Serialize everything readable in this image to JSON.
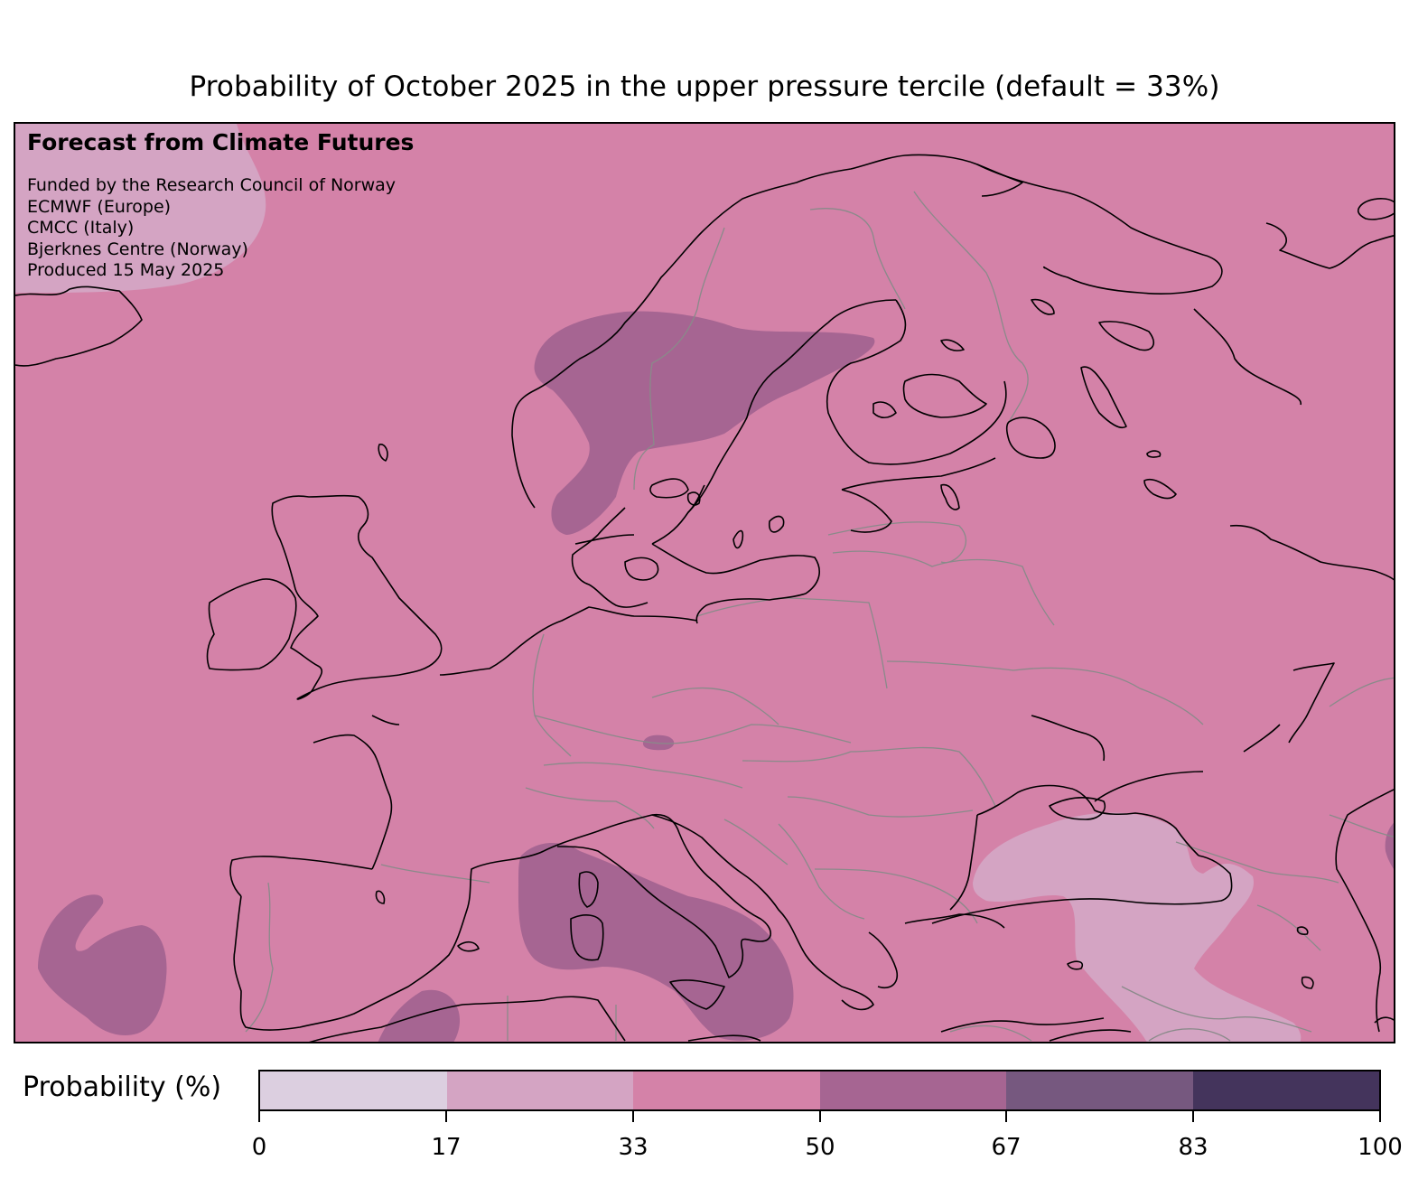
{
  "title": "Probability of October 2025 in the upper pressure tercile (default = 33%)",
  "credits": {
    "heading": "Forecast from Climate Futures",
    "lines": [
      "Funded by the Research Council of Norway",
      "ECMWF (Europe)",
      "CMCC (Italy)",
      "Bjerknes Centre (Norway)",
      "Produced 15 May 2025"
    ]
  },
  "legend": {
    "label": "Probability (%)",
    "bins": [
      {
        "from": 0,
        "to": 17,
        "color": "#dccfe0"
      },
      {
        "from": 17,
        "to": 33,
        "color": "#d4a4c3"
      },
      {
        "from": 33,
        "to": 50,
        "color": "#d482a8"
      },
      {
        "from": 50,
        "to": 67,
        "color": "#a66592"
      },
      {
        "from": 67,
        "to": 83,
        "color": "#76587f"
      },
      {
        "from": 83,
        "to": 100,
        "color": "#44345c"
      }
    ],
    "ticks": [
      "0",
      "17",
      "33",
      "50",
      "67",
      "83",
      "100"
    ]
  },
  "map": {
    "background_class": "33-50",
    "regions": [
      {
        "name": "scandinavia",
        "class": "50-67"
      },
      {
        "name": "tyrrhenian-italy",
        "class": "50-67"
      },
      {
        "name": "north-algeria",
        "class": "50-67"
      },
      {
        "name": "east-atlantic",
        "class": "50-67"
      },
      {
        "name": "alps-small",
        "class": "50-67"
      },
      {
        "name": "caspian-edge",
        "class": "50-67"
      },
      {
        "name": "greenland-sea",
        "class": "17-33"
      },
      {
        "name": "black-sea-anatolia",
        "class": "17-33"
      }
    ]
  }
}
